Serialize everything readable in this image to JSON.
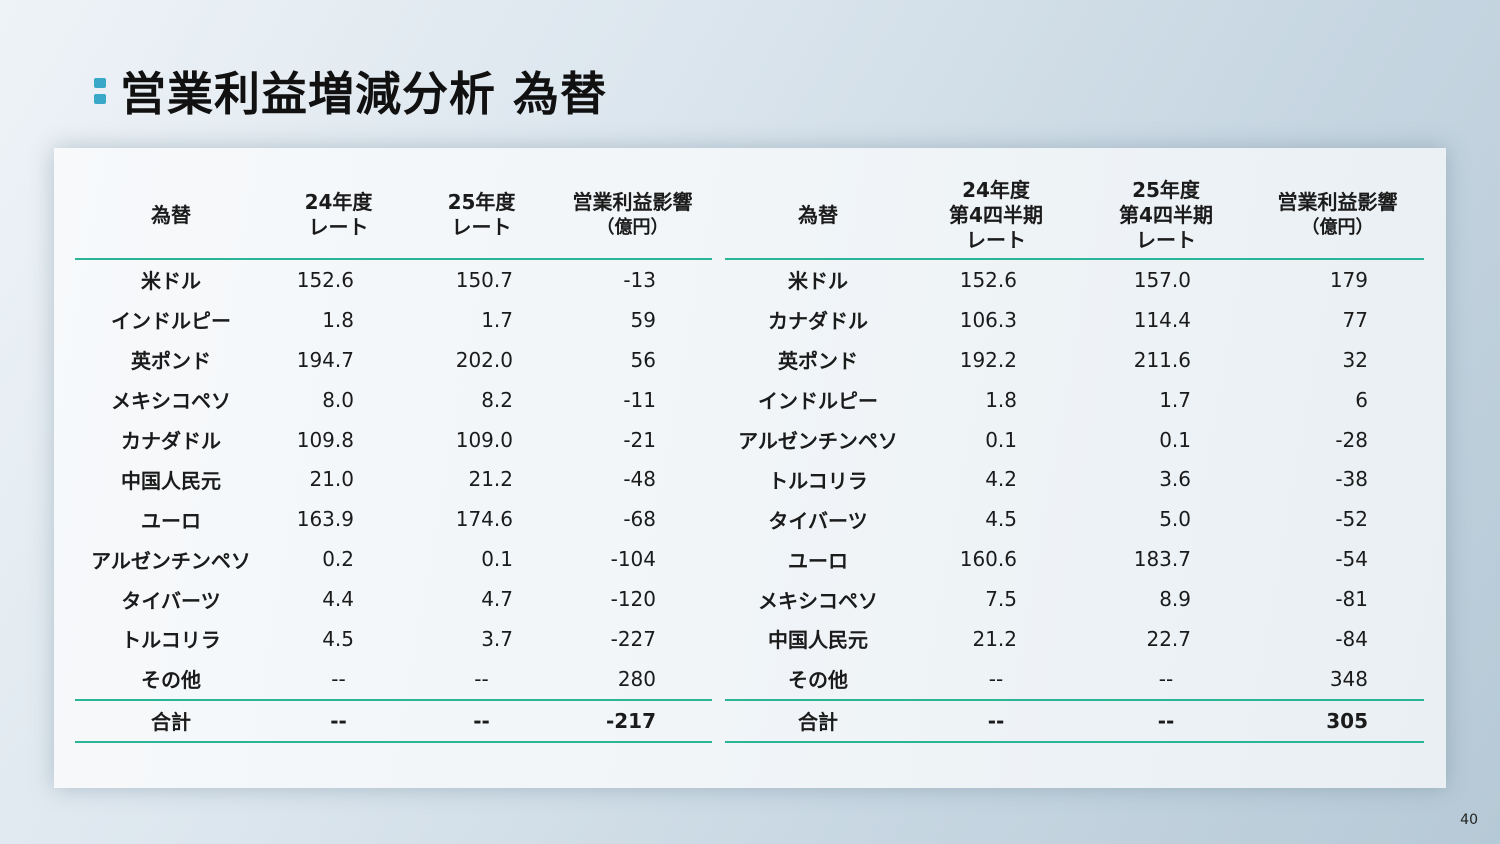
{
  "title": "営業利益増減分析 為替",
  "page_number": "40",
  "left_table": {
    "headers": [
      {
        "lines": [
          "為替"
        ]
      },
      {
        "lines": [
          "24年度",
          "レート"
        ]
      },
      {
        "lines": [
          "25年度",
          "レート"
        ]
      },
      {
        "lines": [
          "営業利益影響",
          "（億円）"
        ]
      }
    ],
    "rows": [
      [
        "米ドル",
        "152.6",
        "150.7",
        "-13"
      ],
      [
        "インドルピー",
        "1.8",
        "1.7",
        "59"
      ],
      [
        "英ポンド",
        "194.7",
        "202.0",
        "56"
      ],
      [
        "メキシコペソ",
        "8.0",
        "8.2",
        "-11"
      ],
      [
        "カナダドル",
        "109.8",
        "109.0",
        "-21"
      ],
      [
        "中国人民元",
        "21.0",
        "21.2",
        "-48"
      ],
      [
        "ユーロ",
        "163.9",
        "174.6",
        "-68"
      ],
      [
        "アルゼンチンペソ",
        "0.2",
        "0.1",
        "-104"
      ],
      [
        "タイバーツ",
        "4.4",
        "4.7",
        "-120"
      ],
      [
        "トルコリラ",
        "4.5",
        "3.7",
        "-227"
      ],
      [
        "その他",
        "--",
        "--",
        "280"
      ]
    ],
    "total": [
      "合計",
      "--",
      "--",
      "-217"
    ]
  },
  "right_table": {
    "headers": [
      {
        "lines": [
          "為替"
        ]
      },
      {
        "lines": [
          "24年度",
          "第4四半期",
          "レート"
        ]
      },
      {
        "lines": [
          "25年度",
          "第4四半期",
          "レート"
        ]
      },
      {
        "lines": [
          "営業利益影響",
          "（億円）"
        ]
      }
    ],
    "rows": [
      [
        "米ドル",
        "152.6",
        "157.0",
        "179"
      ],
      [
        "カナダドル",
        "106.3",
        "114.4",
        "77"
      ],
      [
        "英ポンド",
        "192.2",
        "211.6",
        "32"
      ],
      [
        "インドルピー",
        "1.8",
        "1.7",
        "6"
      ],
      [
        "アルゼンチンペソ",
        "0.1",
        "0.1",
        "-28"
      ],
      [
        "トルコリラ",
        "4.2",
        "3.6",
        "-38"
      ],
      [
        "タイバーツ",
        "4.5",
        "5.0",
        "-52"
      ],
      [
        "ユーロ",
        "160.6",
        "183.7",
        "-54"
      ],
      [
        "メキシコペソ",
        "7.5",
        "8.9",
        "-81"
      ],
      [
        "中国人民元",
        "21.2",
        "22.7",
        "-84"
      ],
      [
        "その他",
        "--",
        "--",
        "348"
      ]
    ],
    "total": [
      "合計",
      "--",
      "--",
      "305"
    ]
  },
  "colors": {
    "accent": "#2ab597",
    "title_mark": "#3aa9c9"
  }
}
